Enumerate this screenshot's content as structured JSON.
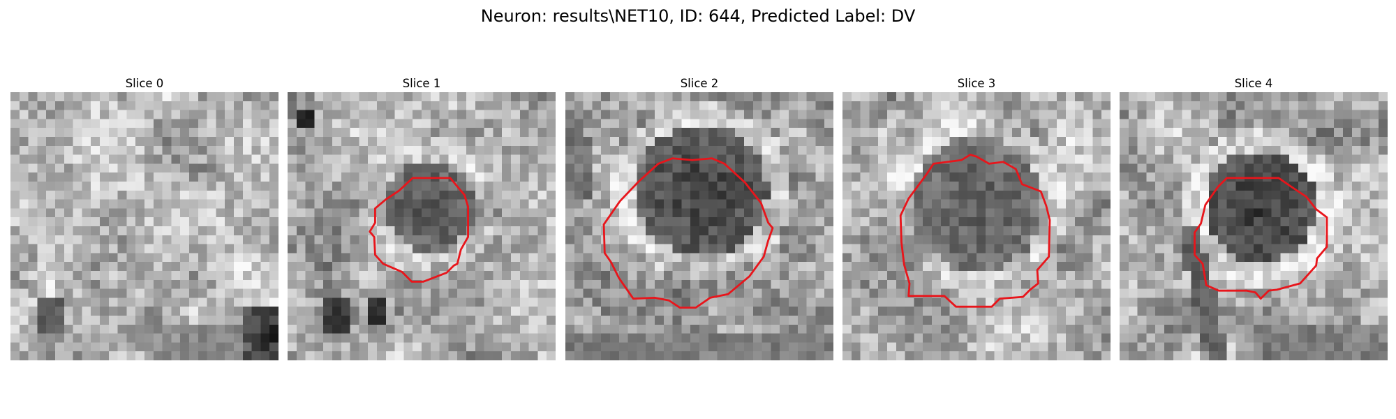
{
  "figure": {
    "title": "Neuron: results\\NET10, ID: 644, Predicted Label: DV",
    "panels": [
      {
        "title": "Slice 0",
        "image": "grayscale-microscopy-patch",
        "has_contour": false
      },
      {
        "title": "Slice 1",
        "image": "grayscale-microscopy-patch",
        "has_contour": true
      },
      {
        "title": "Slice 2",
        "image": "grayscale-microscopy-patch",
        "has_contour": true
      },
      {
        "title": "Slice 3",
        "image": "grayscale-microscopy-patch",
        "has_contour": true
      },
      {
        "title": "Slice 4",
        "image": "grayscale-microscopy-patch",
        "has_contour": true
      }
    ],
    "contour_color": "#e8151b"
  }
}
